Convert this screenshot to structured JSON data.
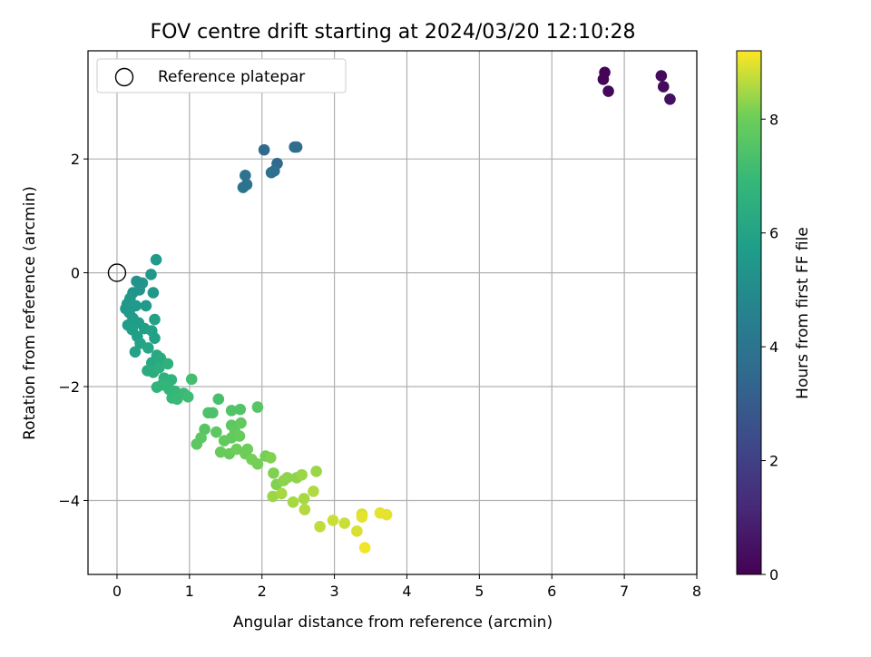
{
  "chart_data": {
    "type": "scatter",
    "title": "FOV centre drift starting at 2024/03/20 12:10:28",
    "xlabel": "Angular distance from reference (arcmin)",
    "ylabel": "Rotation from reference (arcmin)",
    "xlim": [
      -0.4,
      8.0
    ],
    "ylim": [
      -5.3,
      3.9
    ],
    "xticks": [
      0,
      1,
      2,
      3,
      4,
      5,
      6,
      7,
      8
    ],
    "yticks": [
      -4,
      -2,
      0,
      2
    ],
    "grid": true,
    "legend": {
      "placement": "upper-left",
      "entries": [
        "Reference platepar"
      ]
    },
    "reference_point": {
      "x": 0.0,
      "y": 0.0,
      "label": "Reference platepar"
    },
    "colorbar": {
      "label": "Hours from first FF file",
      "colormap": "viridis",
      "range": [
        0,
        9.2
      ],
      "ticks": [
        0,
        2,
        4,
        6,
        8
      ]
    },
    "points": [
      {
        "x": 6.73,
        "y": 3.52,
        "c": 0.1
      },
      {
        "x": 6.71,
        "y": 3.4,
        "c": 0.1
      },
      {
        "x": 6.78,
        "y": 3.19,
        "c": 0.2
      },
      {
        "x": 7.51,
        "y": 3.46,
        "c": 0.3
      },
      {
        "x": 7.54,
        "y": 3.27,
        "c": 0.3
      },
      {
        "x": 7.63,
        "y": 3.05,
        "c": 0.4
      },
      {
        "x": 2.03,
        "y": 2.16,
        "c": 3.6
      },
      {
        "x": 2.21,
        "y": 1.92,
        "c": 3.6
      },
      {
        "x": 2.45,
        "y": 2.21,
        "c": 3.7
      },
      {
        "x": 2.48,
        "y": 2.21,
        "c": 3.7
      },
      {
        "x": 2.13,
        "y": 1.76,
        "c": 3.8
      },
      {
        "x": 2.17,
        "y": 1.79,
        "c": 3.8
      },
      {
        "x": 1.77,
        "y": 1.71,
        "c": 3.9
      },
      {
        "x": 1.79,
        "y": 1.55,
        "c": 3.9
      },
      {
        "x": 1.74,
        "y": 1.5,
        "c": 4.0
      },
      {
        "x": 0.54,
        "y": 0.23,
        "c": 5.6
      },
      {
        "x": 0.47,
        "y": -0.03,
        "c": 5.5
      },
      {
        "x": 0.5,
        "y": -0.35,
        "c": 5.5
      },
      {
        "x": 0.35,
        "y": -0.18,
        "c": 5.4
      },
      {
        "x": 0.27,
        "y": -0.15,
        "c": 5.3
      },
      {
        "x": 0.31,
        "y": -0.3,
        "c": 5.4
      },
      {
        "x": 0.22,
        "y": -0.35,
        "c": 5.4
      },
      {
        "x": 0.18,
        "y": -0.45,
        "c": 5.5
      },
      {
        "x": 0.14,
        "y": -0.55,
        "c": 5.5
      },
      {
        "x": 0.12,
        "y": -0.63,
        "c": 5.5
      },
      {
        "x": 0.17,
        "y": -0.7,
        "c": 5.6
      },
      {
        "x": 0.26,
        "y": -0.58,
        "c": 5.6
      },
      {
        "x": 0.4,
        "y": -0.58,
        "c": 5.6
      },
      {
        "x": 0.22,
        "y": -0.8,
        "c": 5.7
      },
      {
        "x": 0.15,
        "y": -0.92,
        "c": 5.7
      },
      {
        "x": 0.3,
        "y": -0.88,
        "c": 5.7
      },
      {
        "x": 0.21,
        "y": -1.0,
        "c": 5.8
      },
      {
        "x": 0.28,
        "y": -1.12,
        "c": 5.8
      },
      {
        "x": 0.38,
        "y": -0.98,
        "c": 5.8
      },
      {
        "x": 0.52,
        "y": -0.82,
        "c": 5.9
      },
      {
        "x": 0.48,
        "y": -1.02,
        "c": 5.9
      },
      {
        "x": 0.52,
        "y": -1.15,
        "c": 5.9
      },
      {
        "x": 0.32,
        "y": -1.24,
        "c": 6.0
      },
      {
        "x": 0.25,
        "y": -1.39,
        "c": 6.0
      },
      {
        "x": 0.43,
        "y": -1.32,
        "c": 6.1
      },
      {
        "x": 0.55,
        "y": -1.45,
        "c": 6.2
      },
      {
        "x": 0.48,
        "y": -1.58,
        "c": 6.2
      },
      {
        "x": 0.6,
        "y": -1.5,
        "c": 6.3
      },
      {
        "x": 0.42,
        "y": -1.72,
        "c": 6.4
      },
      {
        "x": 0.5,
        "y": -1.75,
        "c": 6.4
      },
      {
        "x": 0.58,
        "y": -1.67,
        "c": 6.5
      },
      {
        "x": 0.7,
        "y": -1.6,
        "c": 6.6
      },
      {
        "x": 0.65,
        "y": -1.85,
        "c": 6.6
      },
      {
        "x": 0.55,
        "y": -2.01,
        "c": 6.7
      },
      {
        "x": 0.75,
        "y": -1.88,
        "c": 6.7
      },
      {
        "x": 0.62,
        "y": -1.97,
        "c": 6.8
      },
      {
        "x": 0.72,
        "y": -2.05,
        "c": 6.8
      },
      {
        "x": 0.8,
        "y": -2.08,
        "c": 6.9
      },
      {
        "x": 0.76,
        "y": -2.2,
        "c": 6.9
      },
      {
        "x": 0.83,
        "y": -2.22,
        "c": 7.0
      },
      {
        "x": 0.92,
        "y": -2.12,
        "c": 7.0
      },
      {
        "x": 0.98,
        "y": -2.18,
        "c": 7.1
      },
      {
        "x": 1.03,
        "y": -1.87,
        "c": 7.2
      },
      {
        "x": 1.4,
        "y": -2.22,
        "c": 7.3
      },
      {
        "x": 1.26,
        "y": -2.46,
        "c": 7.4
      },
      {
        "x": 1.32,
        "y": -2.46,
        "c": 7.4
      },
      {
        "x": 1.58,
        "y": -2.42,
        "c": 7.5
      },
      {
        "x": 1.7,
        "y": -2.4,
        "c": 7.5
      },
      {
        "x": 1.94,
        "y": -2.36,
        "c": 7.6
      },
      {
        "x": 1.21,
        "y": -2.75,
        "c": 7.6
      },
      {
        "x": 1.16,
        "y": -2.9,
        "c": 7.7
      },
      {
        "x": 1.1,
        "y": -3.01,
        "c": 7.7
      },
      {
        "x": 1.37,
        "y": -2.8,
        "c": 7.7
      },
      {
        "x": 1.58,
        "y": -2.68,
        "c": 7.7
      },
      {
        "x": 1.71,
        "y": -2.64,
        "c": 7.8
      },
      {
        "x": 1.63,
        "y": -2.8,
        "c": 7.8
      },
      {
        "x": 1.48,
        "y": -2.95,
        "c": 7.8
      },
      {
        "x": 1.58,
        "y": -2.9,
        "c": 7.8
      },
      {
        "x": 1.69,
        "y": -2.87,
        "c": 7.9
      },
      {
        "x": 1.43,
        "y": -3.15,
        "c": 7.9
      },
      {
        "x": 1.55,
        "y": -3.18,
        "c": 7.9
      },
      {
        "x": 1.65,
        "y": -3.1,
        "c": 8.0
      },
      {
        "x": 1.77,
        "y": -3.18,
        "c": 8.0
      },
      {
        "x": 1.8,
        "y": -3.1,
        "c": 8.0
      },
      {
        "x": 1.86,
        "y": -3.28,
        "c": 8.1
      },
      {
        "x": 1.94,
        "y": -3.36,
        "c": 8.1
      },
      {
        "x": 2.05,
        "y": -3.22,
        "c": 8.1
      },
      {
        "x": 2.12,
        "y": -3.25,
        "c": 8.2
      },
      {
        "x": 2.16,
        "y": -3.52,
        "c": 8.2
      },
      {
        "x": 2.2,
        "y": -3.72,
        "c": 8.2
      },
      {
        "x": 2.3,
        "y": -3.65,
        "c": 8.3
      },
      {
        "x": 2.35,
        "y": -3.6,
        "c": 8.3
      },
      {
        "x": 2.48,
        "y": -3.6,
        "c": 8.3
      },
      {
        "x": 2.55,
        "y": -3.55,
        "c": 8.4
      },
      {
        "x": 2.75,
        "y": -3.49,
        "c": 8.4
      },
      {
        "x": 2.15,
        "y": -3.93,
        "c": 8.4
      },
      {
        "x": 2.27,
        "y": -3.88,
        "c": 8.5
      },
      {
        "x": 2.43,
        "y": -4.03,
        "c": 8.5
      },
      {
        "x": 2.58,
        "y": -3.97,
        "c": 8.5
      },
      {
        "x": 2.71,
        "y": -3.84,
        "c": 8.6
      },
      {
        "x": 2.59,
        "y": -4.16,
        "c": 8.6
      },
      {
        "x": 2.8,
        "y": -4.46,
        "c": 8.7
      },
      {
        "x": 2.98,
        "y": -4.35,
        "c": 8.8
      },
      {
        "x": 3.14,
        "y": -4.4,
        "c": 8.8
      },
      {
        "x": 3.31,
        "y": -4.54,
        "c": 8.9
      },
      {
        "x": 3.38,
        "y": -4.24,
        "c": 8.9
      },
      {
        "x": 3.38,
        "y": -4.29,
        "c": 9.0
      },
      {
        "x": 3.63,
        "y": -4.22,
        "c": 9.0
      },
      {
        "x": 3.72,
        "y": -4.25,
        "c": 9.0
      },
      {
        "x": 3.42,
        "y": -4.83,
        "c": 9.1
      }
    ]
  }
}
